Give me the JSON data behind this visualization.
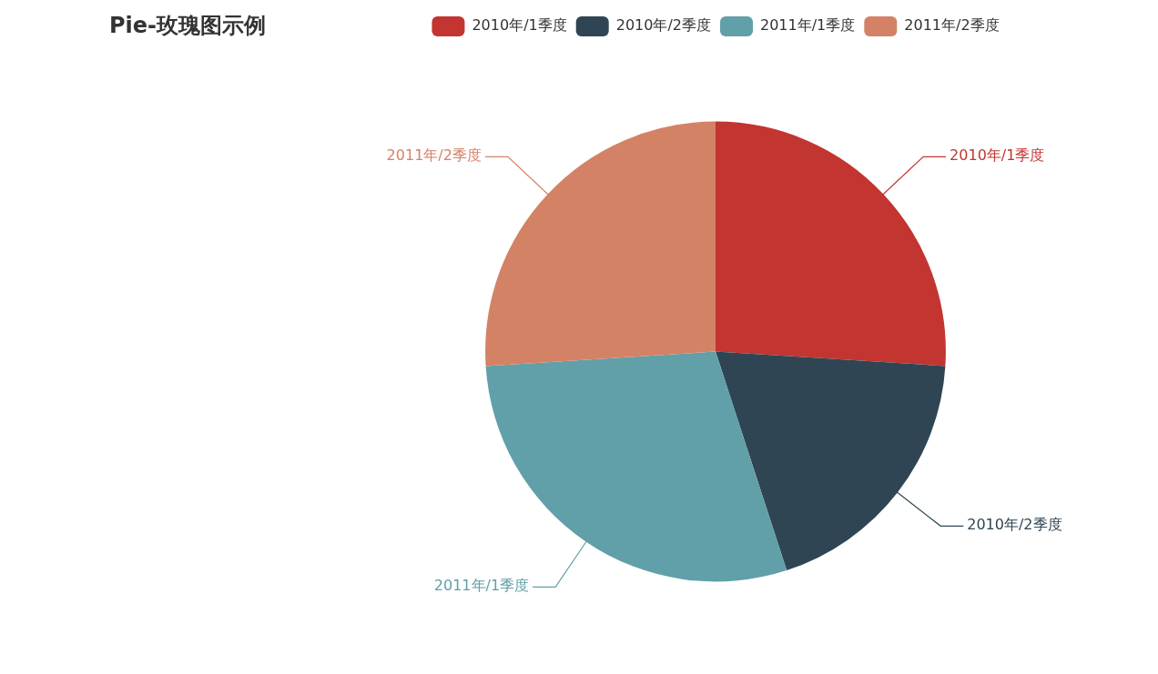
{
  "chart_data": {
    "type": "pie",
    "title": "Pie-玫瑰图示例",
    "categories": [
      "2010年/1季度",
      "2010年/2季度",
      "2011年/1季度",
      "2011年/2季度"
    ],
    "values": [
      26,
      19,
      29,
      26
    ],
    "colors": [
      "#c23531",
      "#2f4554",
      "#61a0a8",
      "#d48265"
    ],
    "legend": "top"
  }
}
